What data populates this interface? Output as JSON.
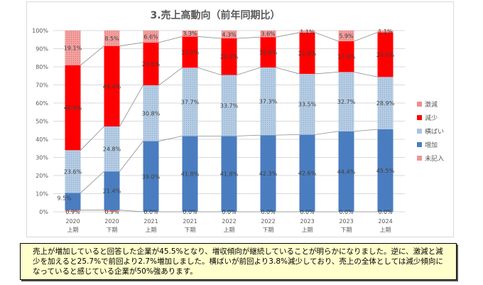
{
  "chart_data": {
    "type": "bar",
    "stacked": "percent",
    "title": "3.売上高動向（前年同期比）",
    "categories": [
      "2020\n上期",
      "2020\n下期",
      "2021\n上期",
      "2021\n下期",
      "2022\n上期",
      "2022\n下期",
      "2023\n上期",
      "2023\n下期",
      "2024\n上期"
    ],
    "series": [
      {
        "name": "未記入",
        "color": "#e6999a",
        "values": [
          0.9,
          0.9,
          0.0,
          0.0,
          0.0,
          0.0,
          0.0,
          0.0,
          0.0
        ]
      },
      {
        "name": "増加",
        "color": "#4a7dbf",
        "values": [
          9.5,
          21.4,
          39.0,
          41.8,
          41.8,
          42.3,
          42.6,
          44.4,
          45.5
        ]
      },
      {
        "name": "横ばい",
        "color": "#a9c4e0",
        "values": [
          23.6,
          24.8,
          30.8,
          37.7,
          33.7,
          37.3,
          33.5,
          32.7,
          28.9
        ]
      },
      {
        "name": "減少",
        "color": "#ff0000",
        "values": [
          46.9,
          44.4,
          23.6,
          17.2,
          20.2,
          16.8,
          22.8,
          17.0,
          24.6
        ]
      },
      {
        "name": "激減",
        "color": "#f08c8c",
        "values": [
          19.1,
          8.5,
          6.6,
          3.3,
          4.3,
          3.6,
          1.1,
          5.9,
          1.1
        ]
      }
    ],
    "legend_order": [
      "激減",
      "減少",
      "横ばい",
      "増加",
      "未記入"
    ],
    "legend_position": "right",
    "ylim": [
      0,
      100
    ],
    "yticks": [
      "0%",
      "10%",
      "20%",
      "30%",
      "40%",
      "50%",
      "60%",
      "70%",
      "80%",
      "90%",
      "100%"
    ],
    "grid": true,
    "xlabel": "",
    "ylabel": ""
  },
  "note": "売上が増加していると回答した企業が45.5%となり、増収傾向が継続していることが明らかになりました。逆に、激減と減少を加えると25.7%で前回より2.7%増加しました。横ばいが前回より3.8%減少しており、売上の全体としては減少傾向になっていると感じている企業が50%強あります。"
}
